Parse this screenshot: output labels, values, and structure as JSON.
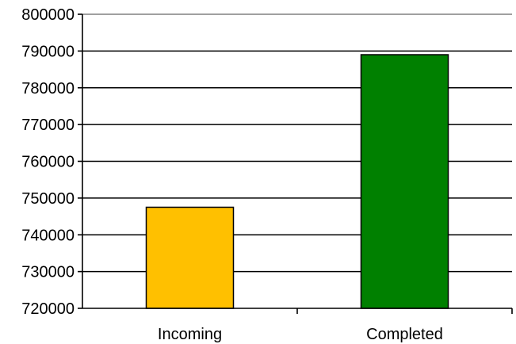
{
  "chart_data": {
    "type": "bar",
    "categories": [
      "Incoming",
      "Completed"
    ],
    "values": [
      747500,
      789000
    ],
    "bar_colors": [
      "#FFC000",
      "#008000"
    ],
    "ylim": [
      720000,
      800000
    ],
    "yticks": [
      720000,
      730000,
      740000,
      750000,
      760000,
      770000,
      780000,
      790000,
      800000
    ],
    "grid": true,
    "title": "",
    "xlabel": "",
    "ylabel": "",
    "legend": "none"
  }
}
